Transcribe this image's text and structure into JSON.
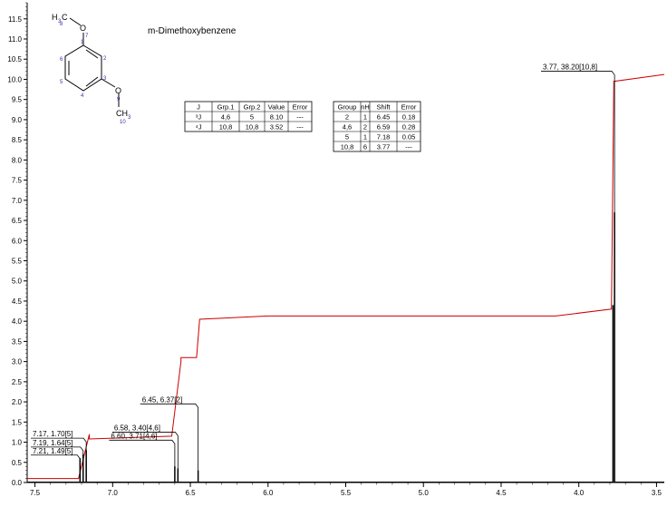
{
  "chart_data": {
    "type": "line",
    "title": "m-Dimethoxybenzene",
    "xlabel": "",
    "ylabel": "",
    "x_reversed": true,
    "xlim": [
      7.55,
      3.45
    ],
    "ylim": [
      0,
      11.9
    ],
    "x_ticks": [
      "7.5",
      "7.0",
      "6.5",
      "6.0",
      "5.5",
      "5.0",
      "4.5",
      "4.0",
      "3.5"
    ],
    "y_ticks": [
      "0.0",
      "0.5",
      "1.0",
      "1.5",
      "2.0",
      "2.5",
      "3.0",
      "3.5",
      "4.0",
      "4.5",
      "5.0",
      "5.5",
      "6.0",
      "6.5",
      "7.0",
      "7.5",
      "8.0",
      "8.5",
      "9.0",
      "9.5",
      "10.0",
      "10.5",
      "11.0",
      "11.5"
    ],
    "grid": false,
    "molecule": {
      "methyl_top": "H",
      "methyl_top_sub": "3",
      "methyl_top_c": "C",
      "oxygen_top": "O",
      "oxygen_bottom": "O",
      "methyl_bottom": "CH",
      "methyl_bottom_sub": "3",
      "atom_numbers": [
        "8",
        "1",
        "2",
        "3",
        "4",
        "5",
        "6",
        "7",
        "9",
        "10"
      ]
    },
    "peaks": [
      {
        "x": 7.21,
        "height": 0.6
      },
      {
        "x": 7.19,
        "height": 0.7
      },
      {
        "x": 7.17,
        "height": 0.8
      },
      {
        "x": 6.6,
        "height": 0.4
      },
      {
        "x": 6.58,
        "height": 0.35
      },
      {
        "x": 6.45,
        "height": 0.3
      },
      {
        "x": 3.77,
        "height": 6.7
      },
      {
        "x": 3.78,
        "height": 4.4
      }
    ],
    "integral": {
      "segments": [
        {
          "x": [
            7.55,
            7.22
          ],
          "y": [
            0.1,
            0.1
          ]
        },
        {
          "x": [
            7.22,
            7.15
          ],
          "y": [
            0.1,
            1.2
          ]
        },
        {
          "x": [
            7.15,
            6.62
          ],
          "y": [
            1.08,
            1.15
          ]
        },
        {
          "x": [
            6.62,
            6.56
          ],
          "y": [
            1.15,
            3.0
          ]
        },
        {
          "x": [
            6.56,
            6.46
          ],
          "y": [
            3.1,
            3.1
          ]
        },
        {
          "x": [
            6.46,
            6.44
          ],
          "y": [
            3.1,
            4.05
          ]
        },
        {
          "x": [
            6.44,
            6.0
          ],
          "y": [
            4.05,
            4.13
          ]
        },
        {
          "x": [
            6.0,
            4.15
          ],
          "y": [
            4.13,
            4.13
          ]
        },
        {
          "x": [
            4.15,
            3.79
          ],
          "y": [
            4.13,
            4.3
          ]
        },
        {
          "x": [
            3.79,
            3.775
          ],
          "y": [
            4.3,
            9.95
          ]
        },
        {
          "x": [
            3.775,
            3.45
          ],
          "y": [
            9.95,
            10.12
          ]
        }
      ]
    },
    "peak_labels": [
      {
        "text": "3.77, 38.20[10,8]",
        "x": 3.77,
        "label_y": 10.2
      },
      {
        "text": "6.45, 6.37[2]",
        "x": 6.45,
        "label_y": 1.95
      },
      {
        "text": "6.58, 3.40[4,6]",
        "x": 6.58,
        "label_y": 1.25
      },
      {
        "text": "6.60, 3.71[4,6]",
        "x": 6.6,
        "label_y": 1.05
      },
      {
        "text": "7.17, 1.70[5]",
        "x": 7.17,
        "label_y": 1.1
      },
      {
        "text": "7.19, 1.64[5]",
        "x": 7.19,
        "label_y": 0.88
      },
      {
        "text": "7.21, 1.49[5]",
        "x": 7.21,
        "label_y": 0.68
      }
    ],
    "coupling_table": {
      "headers": [
        "J",
        "Grp.1",
        "Grp.2",
        "Value",
        "Error"
      ],
      "rows": [
        [
          "³J",
          "4,6",
          "5",
          "8.10",
          "---"
        ],
        [
          "⁴J",
          "10,8",
          "10,8",
          "3.52",
          "---"
        ]
      ]
    },
    "shift_table": {
      "headers": [
        "Group",
        "nH",
        "Shift",
        "Error"
      ],
      "rows": [
        [
          "2",
          "1",
          "6.45",
          "0.18"
        ],
        [
          "4,6",
          "2",
          "6.59",
          "0.28"
        ],
        [
          "5",
          "1",
          "7.18",
          "0.05"
        ],
        [
          "10,8",
          "6",
          "3.77",
          "---"
        ]
      ]
    },
    "colors": {
      "spectrum": "#000000",
      "integral": "#cc0000",
      "label_box": "#000080",
      "atom_number": "#3333aa",
      "axis": "#000000"
    }
  }
}
